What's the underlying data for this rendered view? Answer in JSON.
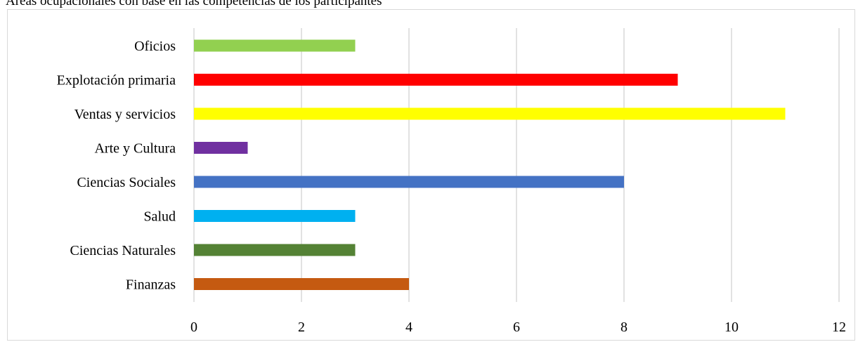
{
  "chart_data": {
    "type": "bar",
    "orientation": "horizontal",
    "title": "Áreas ocupacionales con base en las competencias de los participantes",
    "categories": [
      "Oficios",
      "Explotación primaria",
      "Ventas y servicios",
      "Arte y Cultura",
      "Ciencias Sociales",
      "Salud",
      "Ciencias Naturales",
      "Finanzas"
    ],
    "values": [
      3,
      9,
      11,
      1,
      8,
      3,
      3,
      4
    ],
    "colors": [
      "#92d050",
      "#ff0000",
      "#ffff00",
      "#7030a0",
      "#4472c4",
      "#00b0f0",
      "#548235",
      "#c55a11"
    ],
    "xlim": [
      0,
      12
    ],
    "xticks": [
      0,
      2,
      4,
      6,
      8,
      10,
      12
    ],
    "grid": true,
    "xlabel": "",
    "ylabel": ""
  }
}
